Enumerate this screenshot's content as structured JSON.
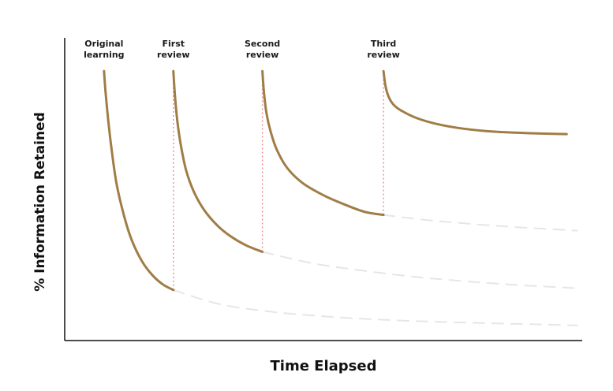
{
  "chart_data": {
    "type": "line",
    "title": "",
    "xlabel": "Time Elapsed",
    "ylabel": "% Information Retained",
    "xlim": [
      0,
      100
    ],
    "ylim": [
      0,
      100
    ],
    "grid": false,
    "legend": "none",
    "events": [
      {
        "label_lines": [
          "Original",
          "learning"
        ],
        "x": 7.6
      },
      {
        "label_lines": [
          "First",
          "review"
        ],
        "x": 21.0
      },
      {
        "label_lines": [
          "Second",
          "review"
        ],
        "x": 38.2
      },
      {
        "label_lines": [
          "Third",
          "review"
        ],
        "x": 61.6
      }
    ],
    "series": [
      {
        "role": "retention",
        "x": [
          7.6,
          7.9,
          8.4,
          9.0,
          10.0,
          11.5,
          13.0,
          15.0,
          17.0,
          19.0,
          21.0
        ],
        "y": [
          89,
          82,
          73,
          64,
          52,
          41,
          33,
          26,
          21.5,
          18.5,
          16.7
        ]
      },
      {
        "role": "retention",
        "x": [
          21.0,
          21.3,
          21.8,
          22.5,
          23.5,
          25.0,
          27.0,
          29.5,
          32.0,
          35.0,
          38.2
        ],
        "y": [
          89,
          81,
          72,
          64,
          56,
          49,
          43,
          38,
          34.5,
          31.5,
          29.3
        ]
      },
      {
        "role": "retention",
        "x": [
          38.2,
          38.5,
          39.0,
          39.8,
          41.0,
          43.0,
          46.0,
          50.0,
          54.0,
          58.0,
          61.6
        ],
        "y": [
          89,
          82,
          75,
          69,
          63,
          57,
          52,
          48,
          45,
          42.5,
          41.5
        ]
      },
      {
        "role": "retention",
        "x": [
          61.6,
          62.0,
          62.6,
          63.5,
          65.0,
          68.0,
          72.0,
          77.0,
          83.0,
          90.0,
          97.0
        ],
        "y": [
          89,
          84,
          80.5,
          78,
          76,
          73.5,
          71.5,
          70,
          69,
          68.5,
          68.2
        ]
      },
      {
        "role": "decay-continuation",
        "x": [
          21.0,
          30.0,
          40.0,
          50.0,
          60.0,
          70.0,
          80.0,
          90.0,
          99.0
        ],
        "y": [
          16.7,
          12.0,
          9.5,
          8.0,
          7.0,
          6.3,
          5.8,
          5.4,
          5.0
        ]
      },
      {
        "role": "decay-continuation",
        "x": [
          38.2,
          48.0,
          58.0,
          68.0,
          78.0,
          88.0,
          99.0
        ],
        "y": [
          29.3,
          25.5,
          23.0,
          21.0,
          19.5,
          18.3,
          17.3
        ]
      },
      {
        "role": "decay-continuation",
        "x": [
          61.6,
          70.0,
          78.0,
          86.0,
          94.0,
          99.0
        ],
        "y": [
          41.5,
          39.8,
          38.6,
          37.6,
          36.8,
          36.3
        ]
      }
    ],
    "review_markers": [
      {
        "x": 21.0,
        "from_y": 16.7,
        "to_y": 89
      },
      {
        "x": 38.2,
        "from_y": 29.3,
        "to_y": 89
      },
      {
        "x": 61.6,
        "from_y": 41.5,
        "to_y": 89
      }
    ],
    "colors": {
      "retention": "#a07d46",
      "decay": "#e6e6e6",
      "review_marker": "#f08a8a",
      "axis": "#111111"
    }
  }
}
